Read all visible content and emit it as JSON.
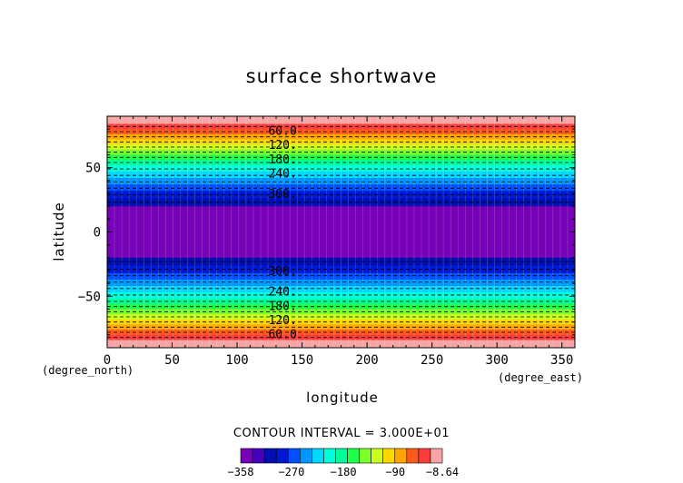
{
  "chart_data": {
    "type": "heatmap",
    "title": "surface shortwave",
    "xlabel": "longitude",
    "ylabel": "latitude",
    "x_unit": "(degree_east)",
    "y_unit": "(degree_north)",
    "xlim": [
      0,
      360
    ],
    "ylim": [
      -90,
      90
    ],
    "x_ticks": [
      0,
      50,
      100,
      150,
      200,
      250,
      300,
      350
    ],
    "y_ticks": [
      -50,
      0,
      50
    ],
    "contour_interval_text": "CONTOUR INTERVAL = 3.000E+01",
    "contour_interval": 30,
    "value_range": [
      -358,
      -8.64
    ],
    "contour_labels": [
      {
        "text": "60.0",
        "lat": 79
      },
      {
        "text": "120.",
        "lat": 68
      },
      {
        "text": "180.",
        "lat": 57
      },
      {
        "text": "240.",
        "lat": 46
      },
      {
        "text": "300.",
        "lat": 30
      },
      {
        "text": "300.",
        "lat": -30
      },
      {
        "text": "240.",
        "lat": -46
      },
      {
        "text": "180.",
        "lat": -57
      },
      {
        "text": "120.",
        "lat": -68
      },
      {
        "text": "60.0",
        "lat": -79
      }
    ],
    "latitude_bands": [
      {
        "lat_from": 84,
        "lat_to": 90,
        "color": "#f6a5a5"
      },
      {
        "lat_from": 80,
        "lat_to": 84,
        "color": "#ff3c3c"
      },
      {
        "lat_from": 76,
        "lat_to": 80,
        "color": "#ff5a1e"
      },
      {
        "lat_from": 72,
        "lat_to": 76,
        "color": "#ffa500"
      },
      {
        "lat_from": 68,
        "lat_to": 72,
        "color": "#ffd800"
      },
      {
        "lat_from": 64,
        "lat_to": 68,
        "color": "#ccff1e"
      },
      {
        "lat_from": 60,
        "lat_to": 64,
        "color": "#7cff2a"
      },
      {
        "lat_from": 56,
        "lat_to": 60,
        "color": "#1eff4a"
      },
      {
        "lat_from": 52,
        "lat_to": 56,
        "color": "#00ff9a"
      },
      {
        "lat_from": 47,
        "lat_to": 52,
        "color": "#00ffd8"
      },
      {
        "lat_from": 42,
        "lat_to": 47,
        "color": "#00d8ff"
      },
      {
        "lat_from": 37,
        "lat_to": 42,
        "color": "#0098ff"
      },
      {
        "lat_from": 32,
        "lat_to": 37,
        "color": "#0050ff"
      },
      {
        "lat_from": 26,
        "lat_to": 32,
        "color": "#0018d0"
      },
      {
        "lat_from": 20,
        "lat_to": 26,
        "color": "#0010b0"
      },
      {
        "lat_from": -20,
        "lat_to": 20,
        "color": "#7800b8"
      },
      {
        "lat_from": -26,
        "lat_to": -20,
        "color": "#0010b0"
      },
      {
        "lat_from": -32,
        "lat_to": -26,
        "color": "#0018d0"
      },
      {
        "lat_from": -37,
        "lat_to": -32,
        "color": "#0050ff"
      },
      {
        "lat_from": -42,
        "lat_to": -37,
        "color": "#0098ff"
      },
      {
        "lat_from": -47,
        "lat_to": -42,
        "color": "#00d8ff"
      },
      {
        "lat_from": -52,
        "lat_to": -47,
        "color": "#00ffd8"
      },
      {
        "lat_from": -56,
        "lat_to": -52,
        "color": "#00ff9a"
      },
      {
        "lat_from": -60,
        "lat_to": -56,
        "color": "#1eff4a"
      },
      {
        "lat_from": -64,
        "lat_to": -60,
        "color": "#7cff2a"
      },
      {
        "lat_from": -68,
        "lat_to": -64,
        "color": "#ccff1e"
      },
      {
        "lat_from": -72,
        "lat_to": -68,
        "color": "#ffd800"
      },
      {
        "lat_from": -76,
        "lat_to": -72,
        "color": "#ffa500"
      },
      {
        "lat_from": -80,
        "lat_to": -76,
        "color": "#ff5a1e"
      },
      {
        "lat_from": -84,
        "lat_to": -80,
        "color": "#ff3c3c"
      },
      {
        "lat_from": -90,
        "lat_to": -84,
        "color": "#f6a5a5"
      }
    ],
    "contour_line_lats": [
      82,
      78,
      74,
      70,
      66,
      62,
      58,
      54,
      49,
      44,
      39,
      34,
      29,
      23,
      -23,
      -29,
      -34,
      -39,
      -44,
      -49,
      -54,
      -58,
      -62,
      -66,
      -70,
      -74,
      -78,
      -82
    ],
    "colorbar": {
      "colors": [
        "#7800b8",
        "#4800c0",
        "#0010b0",
        "#0018d0",
        "#0050ff",
        "#0098ff",
        "#00d8ff",
        "#00ffd8",
        "#00ff9a",
        "#1eff4a",
        "#7cff2a",
        "#ccff1e",
        "#ffd800",
        "#ffa500",
        "#ff5a1e",
        "#ff3c3c",
        "#f6a5a5"
      ],
      "tick_labels": [
        {
          "text": "−358",
          "value": -358
        },
        {
          "text": "−270",
          "value": -270
        },
        {
          "text": "−180",
          "value": -180
        },
        {
          "text": "−90",
          "value": -90
        },
        {
          "text": "−8.64",
          "value": -8.64
        }
      ]
    }
  }
}
